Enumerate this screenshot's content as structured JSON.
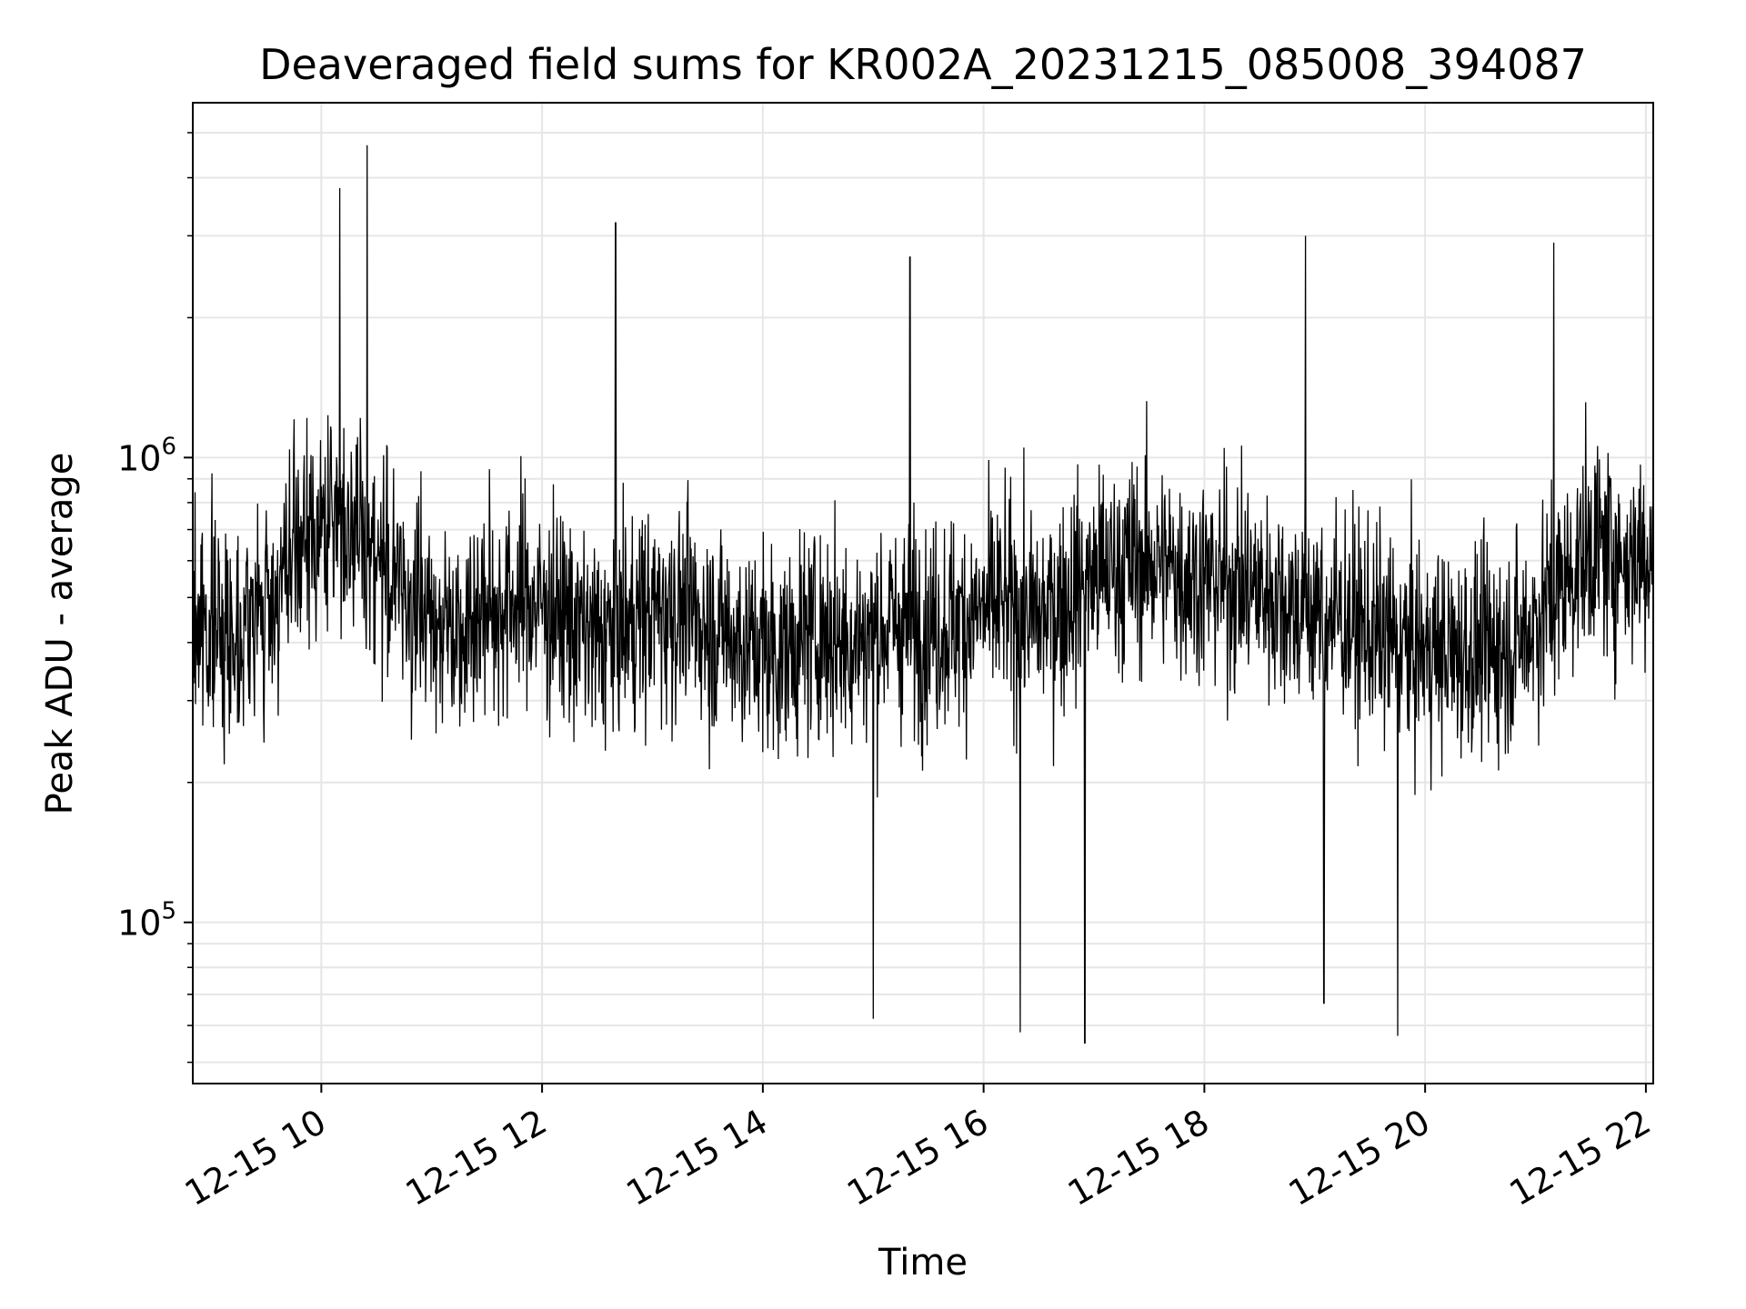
{
  "chart_data": {
    "type": "line",
    "title": "Deaveraged field sums for KR002A_20231215_085008_394087",
    "xlabel": "Time",
    "ylabel": "Peak ADU - average",
    "yscale": "log",
    "ylim": [
      45000,
      5800000
    ],
    "xlim": [
      "2023-12-15 08:50:08",
      "2023-12-15 22:04:00"
    ],
    "x_ticks": [
      "12-15 10",
      "12-15 12",
      "12-15 14",
      "12-15 16",
      "12-15 18",
      "12-15 20",
      "12-15 22"
    ],
    "x_tick_values": [
      "2023-12-15 10:00",
      "2023-12-15 12:00",
      "2023-12-15 14:00",
      "2023-12-15 16:00",
      "2023-12-15 18:00",
      "2023-12-15 20:00",
      "2023-12-15 22:00"
    ],
    "y_ticks": [
      {
        "base": "10",
        "exp": "5",
        "value": 100000
      },
      {
        "base": "10",
        "exp": "6",
        "value": 1000000
      }
    ],
    "grid": true,
    "line_color": "#000000",
    "series": [
      {
        "x": [
          "2023-12-15 08:50",
          "2023-12-15 09:10",
          "2023-12-15 09:30",
          "2023-12-15 09:50",
          "2023-12-15 10:10",
          "2023-12-15 10:30",
          "2023-12-15 10:50",
          "2023-12-15 11:10",
          "2023-12-15 11:30",
          "2023-12-15 11:50",
          "2023-12-15 12:10",
          "2023-12-15 12:30",
          "2023-12-15 12:50",
          "2023-12-15 13:10",
          "2023-12-15 13:30",
          "2023-12-15 13:50",
          "2023-12-15 14:10",
          "2023-12-15 14:30",
          "2023-12-15 14:50",
          "2023-12-15 15:10",
          "2023-12-15 15:30",
          "2023-12-15 15:50",
          "2023-12-15 16:10",
          "2023-12-15 16:30",
          "2023-12-15 16:50",
          "2023-12-15 17:10",
          "2023-12-15 17:30",
          "2023-12-15 17:50",
          "2023-12-15 18:10",
          "2023-12-15 18:30",
          "2023-12-15 18:50",
          "2023-12-15 19:10",
          "2023-12-15 19:30",
          "2023-12-15 19:50",
          "2023-12-15 20:10",
          "2023-12-15 20:30",
          "2023-12-15 20:50",
          "2023-12-15 21:10",
          "2023-12-15 21:30",
          "2023-12-15 21:50",
          "2023-12-15 22:04"
        ],
        "y_typical": [
          450000,
          420000,
          470000,
          650000,
          750000,
          620000,
          480000,
          440000,
          470000,
          500000,
          460000,
          400000,
          450000,
          480000,
          440000,
          400000,
          380000,
          420000,
          400000,
          440000,
          430000,
          450000,
          480000,
          450000,
          520000,
          580000,
          600000,
          560000,
          540000,
          520000,
          480000,
          460000,
          420000,
          390000,
          380000,
          380000,
          400000,
          500000,
          650000,
          600000,
          650000
        ],
        "spikes": [
          {
            "x": "2023-12-15 10:10",
            "y": 3800000
          },
          {
            "x": "2023-12-15 10:25",
            "y": 4700000
          },
          {
            "x": "2023-12-15 12:40",
            "y": 3200000
          },
          {
            "x": "2023-12-15 15:20",
            "y": 2700000
          },
          {
            "x": "2023-12-15 18:55",
            "y": 3000000
          },
          {
            "x": "2023-12-15 21:10",
            "y": 2900000
          },
          {
            "x": "2023-12-15 15:00",
            "y": 62000
          },
          {
            "x": "2023-12-15 16:20",
            "y": 58000
          },
          {
            "x": "2023-12-15 16:55",
            "y": 55000
          },
          {
            "x": "2023-12-15 19:45",
            "y": 57000
          },
          {
            "x": "2023-12-15 19:05",
            "y": 67000
          }
        ]
      }
    ]
  }
}
